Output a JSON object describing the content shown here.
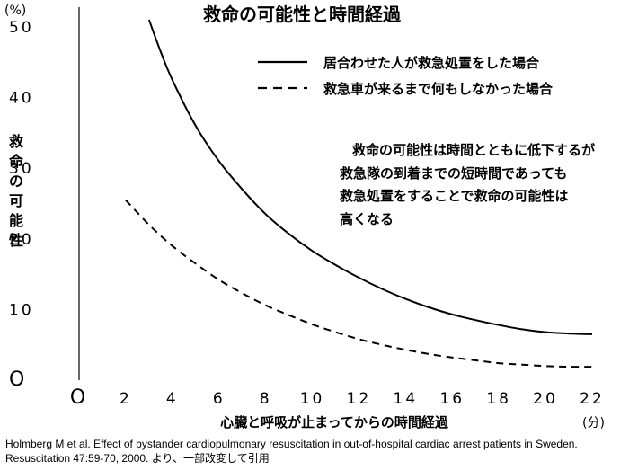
{
  "chart_data": {
    "type": "line",
    "title": "救命の可能性と時間経過",
    "ylabel": "救命の可能性",
    "yunit": "(%)",
    "xlabel": "心臓と呼吸が止まってからの時間経過",
    "xunit": "(分)",
    "xlim": [
      0,
      22
    ],
    "ylim": [
      0,
      50
    ],
    "x_ticks": [
      "O",
      "2",
      "4",
      "6",
      "8",
      "10",
      "12",
      "14",
      "16",
      "18",
      "20",
      "22"
    ],
    "y_ticks": [
      "O",
      "10",
      "20",
      "30",
      "40",
      "50"
    ],
    "grid": false,
    "legend_position": "top-right",
    "series": [
      {
        "name": "居合わせた人が救急処置をした場合",
        "style": "solid",
        "x": [
          3,
          3.5,
          4,
          5,
          6,
          7,
          8,
          9,
          10,
          11,
          12,
          13,
          14,
          15,
          16,
          17,
          18,
          19,
          20,
          21,
          22
        ],
        "y": [
          51,
          46.5,
          42.5,
          36,
          31,
          27,
          23.5,
          20.7,
          18.3,
          16.3,
          14.5,
          12.9,
          11.5,
          10.3,
          9.3,
          8.5,
          7.8,
          7.2,
          6.8,
          6.6,
          6.5
        ]
      },
      {
        "name": "救急車が来るまで何もしなかった場合",
        "style": "dashed",
        "x": [
          2,
          3,
          4,
          5,
          6,
          7,
          8,
          9,
          10,
          11,
          12,
          13,
          14,
          15,
          16,
          17,
          18,
          19,
          20,
          21,
          22
        ],
        "y": [
          25.5,
          22,
          19,
          16.5,
          14.2,
          12.3,
          10.6,
          9.2,
          7.9,
          6.8,
          5.8,
          5,
          4.3,
          3.7,
          3.2,
          2.8,
          2.4,
          2.2,
          2,
          1.9,
          1.9
        ]
      }
    ],
    "annotation": [
      "救命の可能性は時間とともに低下するが",
      "救急隊の到着までの短時間であっても",
      "救急処置をすることで救命の可能性は",
      "高くなる"
    ]
  },
  "source": [
    "Holmberg M et al. Effect of bystander cardiopulmonary resuscitation in out-of-hospital cardiac arrest patients in Sweden.",
    "Resuscitation 47:59-70, 2000. より、一部改変して引用"
  ]
}
